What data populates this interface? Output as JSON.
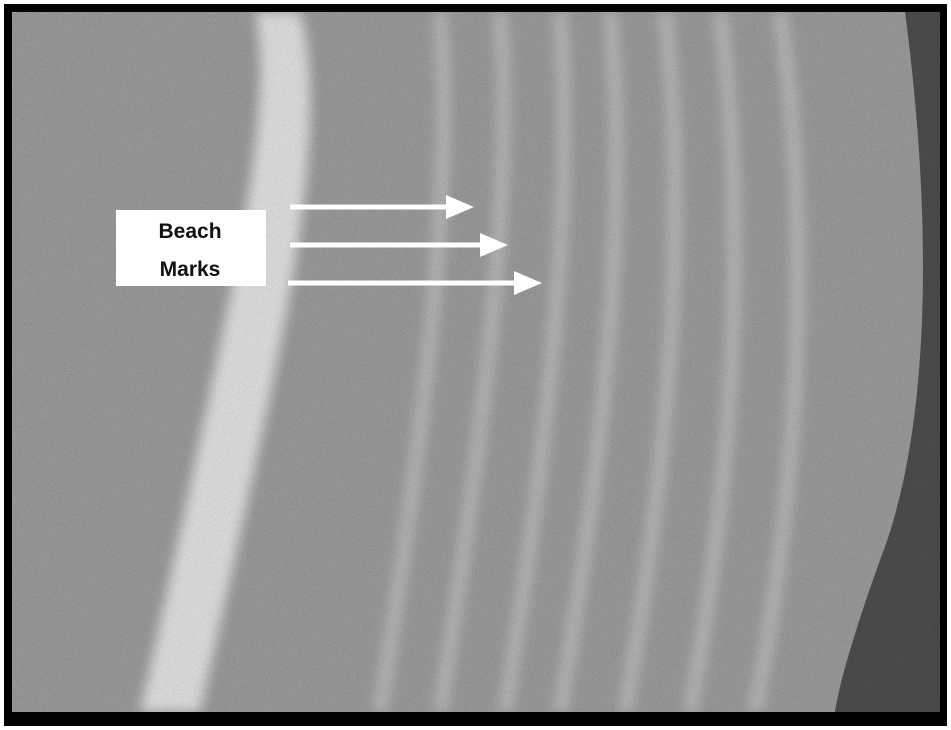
{
  "annotation": {
    "lines": [
      "Beach",
      "Marks"
    ]
  }
}
